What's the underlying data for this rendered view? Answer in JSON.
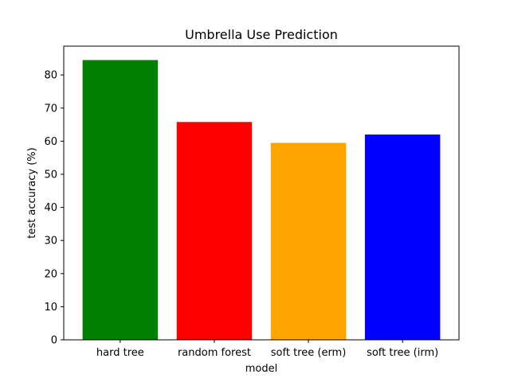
{
  "chart_data": {
    "type": "bar",
    "title": "Umbrella Use Prediction",
    "xlabel": "model",
    "ylabel": "test accuracy (%)",
    "categories": [
      "hard tree",
      "random forest",
      "soft tree (erm)",
      "soft tree (irm)"
    ],
    "values": [
      84.5,
      65.8,
      59.5,
      62.0
    ],
    "colors": [
      "#008000",
      "#ff0000",
      "#ffa500",
      "#0000ff"
    ],
    "ylim": [
      0,
      88.7
    ],
    "yticks": [
      0,
      10,
      20,
      30,
      40,
      50,
      60,
      70,
      80
    ],
    "grid": false
  }
}
